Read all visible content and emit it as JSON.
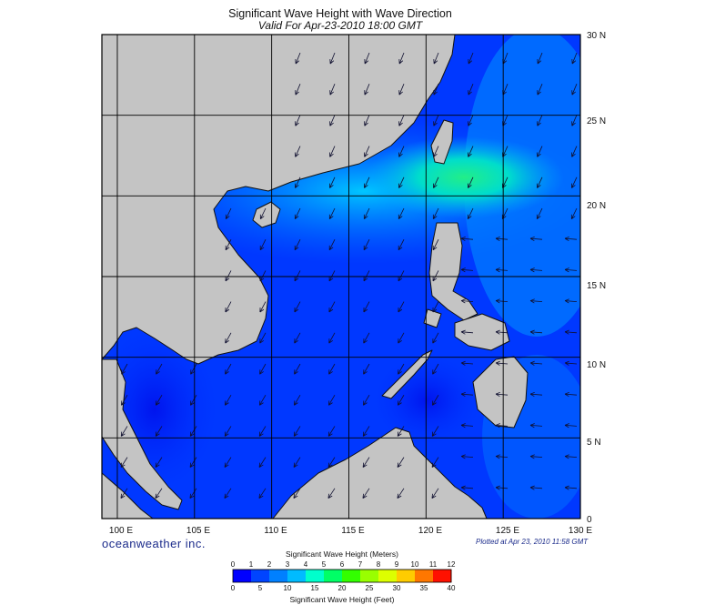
{
  "title": "Significant Wave Height with Wave Direction",
  "subtitle": "Valid For Apr-23-2010 18:00 GMT",
  "brand": "oceanweather inc.",
  "plotted_note": "Plotted at Apr 23, 2010 11:58 GMT",
  "map": {
    "lon_range": [
      99,
      130
    ],
    "lat_range": [
      0,
      30
    ],
    "lon_ticks": [
      "100 E",
      "105 E",
      "110 E",
      "115 E",
      "120 E",
      "125 E",
      "130 E"
    ],
    "lat_ticks": [
      "0",
      "5 N",
      "10 N",
      "15 N",
      "20 N",
      "25 N",
      "30 N"
    ],
    "grid": true,
    "colors": {
      "land": "#c4c4c4",
      "coast": "#111111",
      "grid": "#000000",
      "arrow": "#101030"
    }
  },
  "color_scale": {
    "meters_label": "Significant Wave Height (Meters)",
    "feet_label": "Significant Wave Height (Feet)",
    "meters_ticks": [
      "0",
      "1",
      "2",
      "3",
      "4",
      "5",
      "6",
      "7",
      "8",
      "9",
      "10",
      "11",
      "12"
    ],
    "feet_ticks": [
      "0",
      "5",
      "10",
      "15",
      "20",
      "25",
      "30",
      "35",
      "40"
    ],
    "colors": [
      "#0000ff",
      "#0044ff",
      "#0080ff",
      "#00bbff",
      "#00ffcc",
      "#00ff66",
      "#33ff00",
      "#99ff00",
      "#ddff00",
      "#ffcc00",
      "#ff7700",
      "#ff1100"
    ]
  }
}
